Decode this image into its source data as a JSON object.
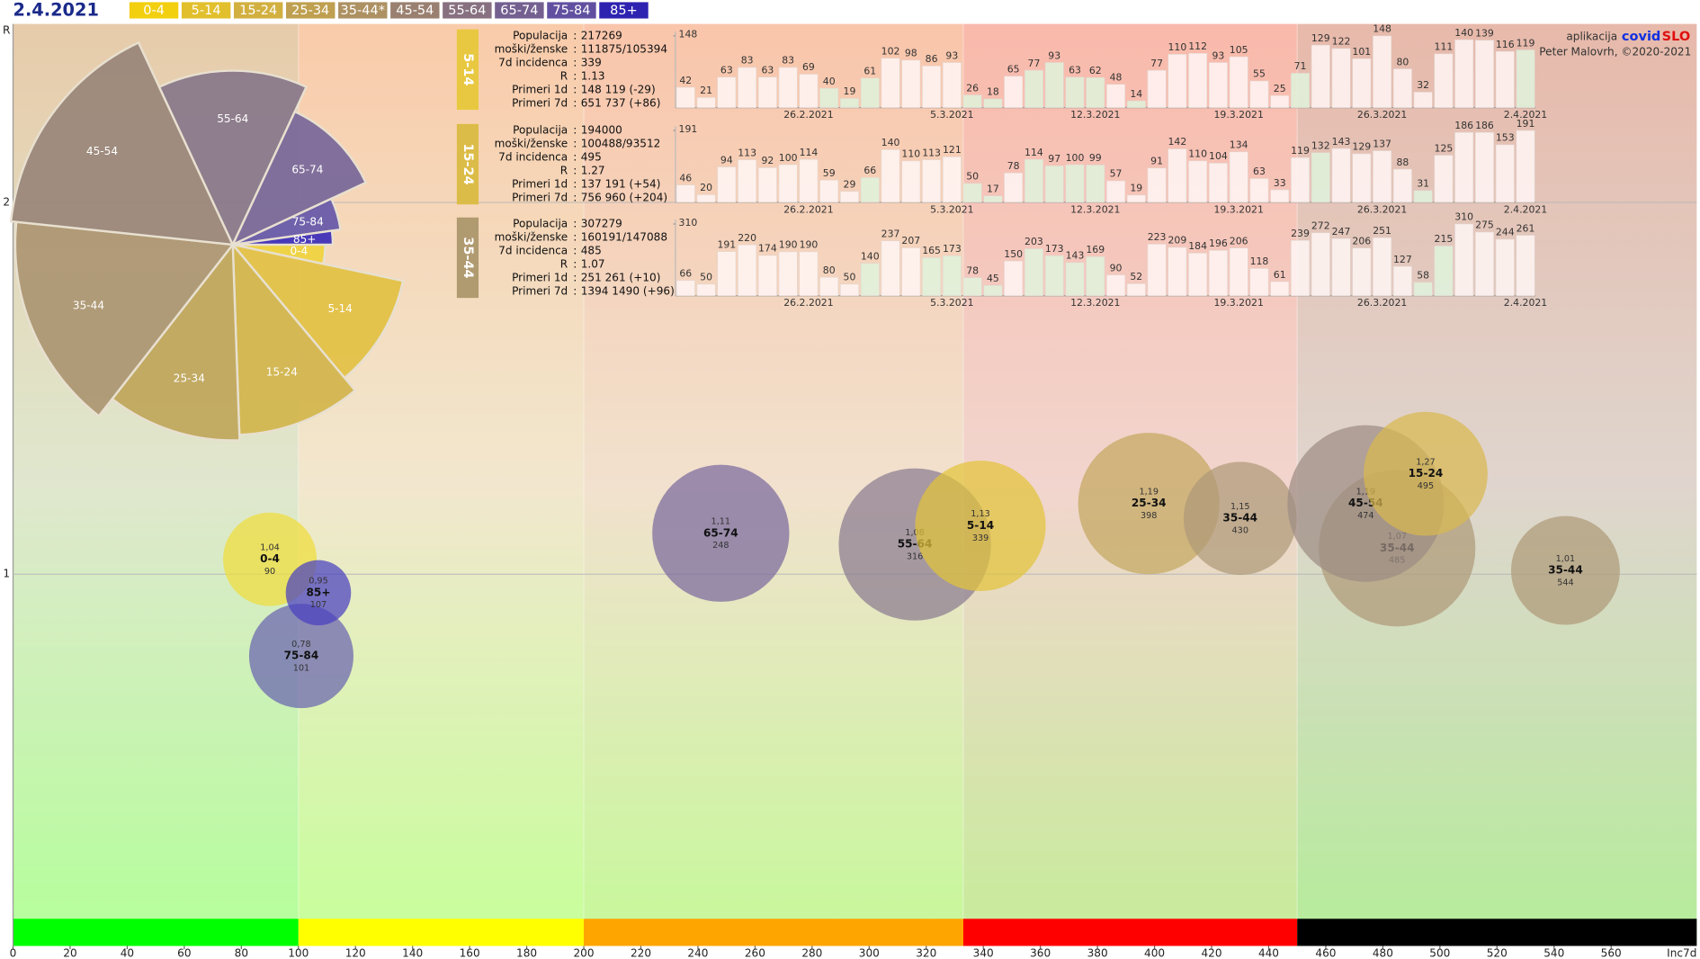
{
  "chart_data": [
    {
      "type": "bubble",
      "title": "2.4.2021",
      "xlabel": "Inc7d",
      "ylabel": "R",
      "xlim": [
        0,
        590
      ],
      "ylim": [
        0,
        2.48
      ],
      "xticks": [
        0,
        20,
        40,
        60,
        80,
        100,
        120,
        140,
        160,
        180,
        200,
        220,
        240,
        260,
        280,
        300,
        320,
        340,
        360,
        380,
        400,
        420,
        440,
        460,
        480,
        500,
        520,
        540,
        560
      ],
      "yticks": [
        1,
        2
      ],
      "grid": true,
      "zones": {
        "breaks": [
          100,
          200,
          333,
          450
        ],
        "colors": [
          "#00ff00",
          "#ffff00",
          "#ffa500",
          "#ff0000",
          "#000000"
        ]
      },
      "legend": [
        {
          "label": "0-4",
          "color": "#f2cf0f"
        },
        {
          "label": "5-14",
          "color": "#e2bf2c"
        },
        {
          "label": "15-24",
          "color": "#d2b040"
        },
        {
          "label": "25-34",
          "color": "#bfa050"
        },
        {
          "label": "35-44*",
          "color": "#ad9162"
        },
        {
          "label": "45-54",
          "color": "#9a8070"
        },
        {
          "label": "55-64",
          "color": "#877080"
        },
        {
          "label": "65-74",
          "color": "#746090"
        },
        {
          "label": "75-84",
          "color": "#6150a0"
        },
        {
          "label": "85+",
          "color": "#2e22b0"
        }
      ],
      "credit": {
        "app": "aplikacija",
        "brand1": "covid",
        "brand2": "SLO",
        "author": "Peter Malovrh, ©2020-2021"
      },
      "series": [
        {
          "name": "0-4",
          "color": "#f0dc3c",
          "x": [
            90
          ],
          "values": [
            1.04
          ],
          "value_labels": [
            "1,04"
          ],
          "sizes": [
            43
          ]
        },
        {
          "name": "75-84",
          "color": "#6a64b0",
          "x": [
            101
          ],
          "values": [
            0.78
          ],
          "value_labels": [
            "0,78"
          ],
          "sizes": [
            48
          ]
        },
        {
          "name": "85+",
          "color": "#4a40c0",
          "x": [
            107
          ],
          "values": [
            0.95
          ],
          "value_labels": [
            "0,95"
          ],
          "sizes": [
            30
          ]
        },
        {
          "name": "65-74",
          "color": "#7a6a9e",
          "x": [
            248
          ],
          "values": [
            1.11
          ],
          "value_labels": [
            "1,11"
          ],
          "sizes": [
            63
          ]
        },
        {
          "name": "55-64",
          "color": "#8a7c90",
          "x": [
            316
          ],
          "values": [
            1.08
          ],
          "value_labels": [
            "1,08"
          ],
          "sizes": [
            70
          ]
        },
        {
          "name": "5-14",
          "color": "#e2c43a",
          "x": [
            339
          ],
          "values": [
            1.13
          ],
          "value_labels": [
            "1,13"
          ],
          "sizes": [
            60
          ]
        },
        {
          "name": "25-34",
          "color": "#c4a860",
          "x": [
            398
          ],
          "values": [
            1.19
          ],
          "value_labels": [
            "1,19"
          ],
          "sizes": [
            65
          ]
        },
        {
          "name": "35-44",
          "color": "#ae9a78",
          "x": [
            430,
            485,
            544
          ],
          "values": [
            1.15,
            1.07,
            1.01
          ],
          "value_labels": [
            "1,15",
            "1,07",
            "1,01"
          ],
          "sizes": [
            52,
            72,
            50
          ]
        },
        {
          "name": "45-54",
          "color": "#9c8c84",
          "x": [
            474
          ],
          "values": [
            1.19
          ],
          "value_labels": [
            "1,19"
          ],
          "sizes": [
            72
          ]
        },
        {
          "name": "15-24",
          "color": "#d8b850",
          "x": [
            495
          ],
          "values": [
            1.27
          ],
          "value_labels": [
            "1,27"
          ],
          "sizes": [
            57
          ]
        }
      ]
    },
    {
      "type": "polar",
      "categories": [
        "0-4",
        "5-14",
        "15-24",
        "25-34",
        "35-44",
        "45-54",
        "55-64",
        "65-74",
        "75-84",
        "85+"
      ],
      "colors": [
        "#f0d23a",
        "#e2c040",
        "#d2b448",
        "#bfa458",
        "#ab9470",
        "#978478",
        "#857488",
        "#746498",
        "#6254a8",
        "#3628b8"
      ],
      "values": [
        12,
        38,
        38,
        40,
        58,
        59,
        50,
        40,
        17,
        8
      ],
      "radii": [
        85,
        160,
        175,
        180,
        200,
        205,
        160,
        135,
        100,
        92
      ]
    },
    {
      "type": "bar",
      "title": "5-14",
      "color": "#e8c840",
      "stats": [
        {
          "label": "Populacija",
          "value": 217269
        },
        {
          "label": "moški/ženske",
          "value": "111875/105394"
        },
        {
          "label": "7d incidenca",
          "value": 339
        },
        {
          "label": "R",
          "value": 1.13
        },
        {
          "label": "Primeri 1d",
          "value": "148 119 (-29)"
        },
        {
          "label": "Primeri 7d",
          "value": "651 737 (+86)"
        }
      ],
      "categories": [
        null,
        null,
        null,
        null,
        null,
        null,
        "26.2.2021",
        null,
        null,
        null,
        null,
        null,
        null,
        "5.3.2021",
        null,
        null,
        null,
        null,
        null,
        null,
        "12.3.2021",
        null,
        null,
        null,
        null,
        null,
        null,
        "19.3.2021",
        null,
        null,
        null,
        null,
        null,
        null,
        "26.3.2021",
        null,
        null,
        null,
        null,
        null,
        null,
        "2.4.2021"
      ],
      "values": [
        42,
        21,
        63,
        83,
        63,
        83,
        69,
        40,
        19,
        61,
        102,
        98,
        86,
        93,
        26,
        18,
        65,
        77,
        93,
        63,
        62,
        48,
        14,
        77,
        110,
        112,
        93,
        105,
        55,
        25,
        71,
        129,
        122,
        101,
        148,
        80,
        32,
        111,
        140,
        139,
        116,
        119
      ],
      "ylim": [
        0,
        148
      ],
      "yticks": [
        148
      ]
    },
    {
      "type": "bar",
      "title": "15-24",
      "color": "#dcbc48",
      "stats": [
        {
          "label": "Populacija",
          "value": 194000
        },
        {
          "label": "moški/ženske",
          "value": "100488/93512"
        },
        {
          "label": "7d incidenca",
          "value": 495
        },
        {
          "label": "R",
          "value": 1.27
        },
        {
          "label": "Primeri 1d",
          "value": "137 191 (+54)"
        },
        {
          "label": "Primeri 7d",
          "value": "756 960 (+204)"
        }
      ],
      "categories": [
        null,
        null,
        null,
        null,
        null,
        null,
        "26.2.2021",
        null,
        null,
        null,
        null,
        null,
        null,
        "5.3.2021",
        null,
        null,
        null,
        null,
        null,
        null,
        "12.3.2021",
        null,
        null,
        null,
        null,
        null,
        null,
        "19.3.2021",
        null,
        null,
        null,
        null,
        null,
        null,
        "26.3.2021",
        null,
        null,
        null,
        null,
        null,
        null,
        "2.4.2021"
      ],
      "values": [
        46,
        20,
        94,
        113,
        92,
        100,
        114,
        59,
        29,
        66,
        140,
        110,
        113,
        121,
        50,
        17,
        78,
        114,
        97,
        100,
        99,
        57,
        19,
        91,
        142,
        110,
        104,
        134,
        63,
        33,
        119,
        132,
        143,
        129,
        137,
        88,
        31,
        125,
        186,
        186,
        153,
        191
      ],
      "ylim": [
        0,
        191
      ],
      "yticks": [
        191
      ]
    },
    {
      "type": "bar",
      "title": "35-44",
      "color": "#b09a70",
      "stats": [
        {
          "label": "Populacija",
          "value": 307279
        },
        {
          "label": "moški/ženske",
          "value": "160191/147088"
        },
        {
          "label": "7d incidenca",
          "value": 485
        },
        {
          "label": "R",
          "value": 1.07
        },
        {
          "label": "Primeri 1d",
          "value": "251 261 (+10)"
        },
        {
          "label": "Primeri 7d",
          "value": "1394 1490 (+96)"
        }
      ],
      "categories": [
        null,
        null,
        null,
        null,
        null,
        null,
        "26.2.2021",
        null,
        null,
        null,
        null,
        null,
        null,
        "5.3.2021",
        null,
        null,
        null,
        null,
        null,
        null,
        "12.3.2021",
        null,
        null,
        null,
        null,
        null,
        null,
        "19.3.2021",
        null,
        null,
        null,
        null,
        null,
        null,
        "26.3.2021",
        null,
        null,
        null,
        null,
        null,
        null,
        "2.4.2021"
      ],
      "values": [
        66,
        50,
        191,
        220,
        174,
        190,
        190,
        80,
        50,
        140,
        237,
        207,
        165,
        173,
        78,
        45,
        150,
        203,
        173,
        143,
        169,
        90,
        52,
        223,
        209,
        184,
        196,
        206,
        118,
        61,
        239,
        272,
        247,
        206,
        251,
        127,
        58,
        215,
        310,
        275,
        244,
        261
      ],
      "ylim": [
        0,
        310
      ],
      "yticks": [
        310
      ]
    }
  ]
}
